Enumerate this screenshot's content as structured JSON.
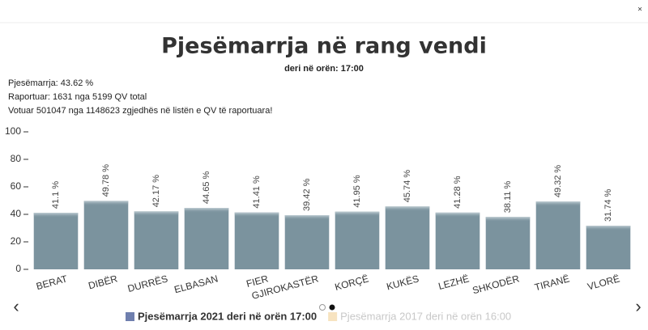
{
  "chart_data": {
    "type": "bar",
    "title": "Pjesëmarrja në rang vendi",
    "subtitle": "deri në orën: 17:00",
    "info": [
      "Pjesëmarrja: 43.62 %",
      "Raportuar: 1631 nga 5199 QV total",
      "Votuar 501047 nga 1148623 zgjedhës në listën e QV të raportuara!"
    ],
    "categories": [
      "BERAT",
      "DIBËR",
      "DURRËS",
      "ELBASAN",
      "FIER",
      "GJIROKASTËR",
      "KORÇË",
      "KUKËS",
      "LEZHË",
      "SHKODËR",
      "TIRANË",
      "VLORË"
    ],
    "values": [
      41.1,
      49.78,
      42.17,
      44.65,
      41.41,
      39.42,
      41.95,
      45.74,
      41.28,
      38.11,
      49.32,
      31.74
    ],
    "value_labels": [
      "41.1 %",
      "49.78 %",
      "42.17 %",
      "44.65 %",
      "41.41 %",
      "39.42 %",
      "41.95 %",
      "45.74 %",
      "41.28 %",
      "38.11 %",
      "49.32 %",
      "31.74 %"
    ],
    "color": "#7b939e",
    "ylim": [
      0,
      100
    ],
    "yticks": [
      0,
      20,
      40,
      60,
      80,
      100
    ],
    "legend": [
      {
        "name": "Pjesëmarrja 2021 deri në orën 17:00",
        "color": "#6f7fae"
      },
      {
        "name": "Pjesëmarrja 2017 deri në orën 16:00",
        "color": "#f7e3c0"
      }
    ]
  }
}
